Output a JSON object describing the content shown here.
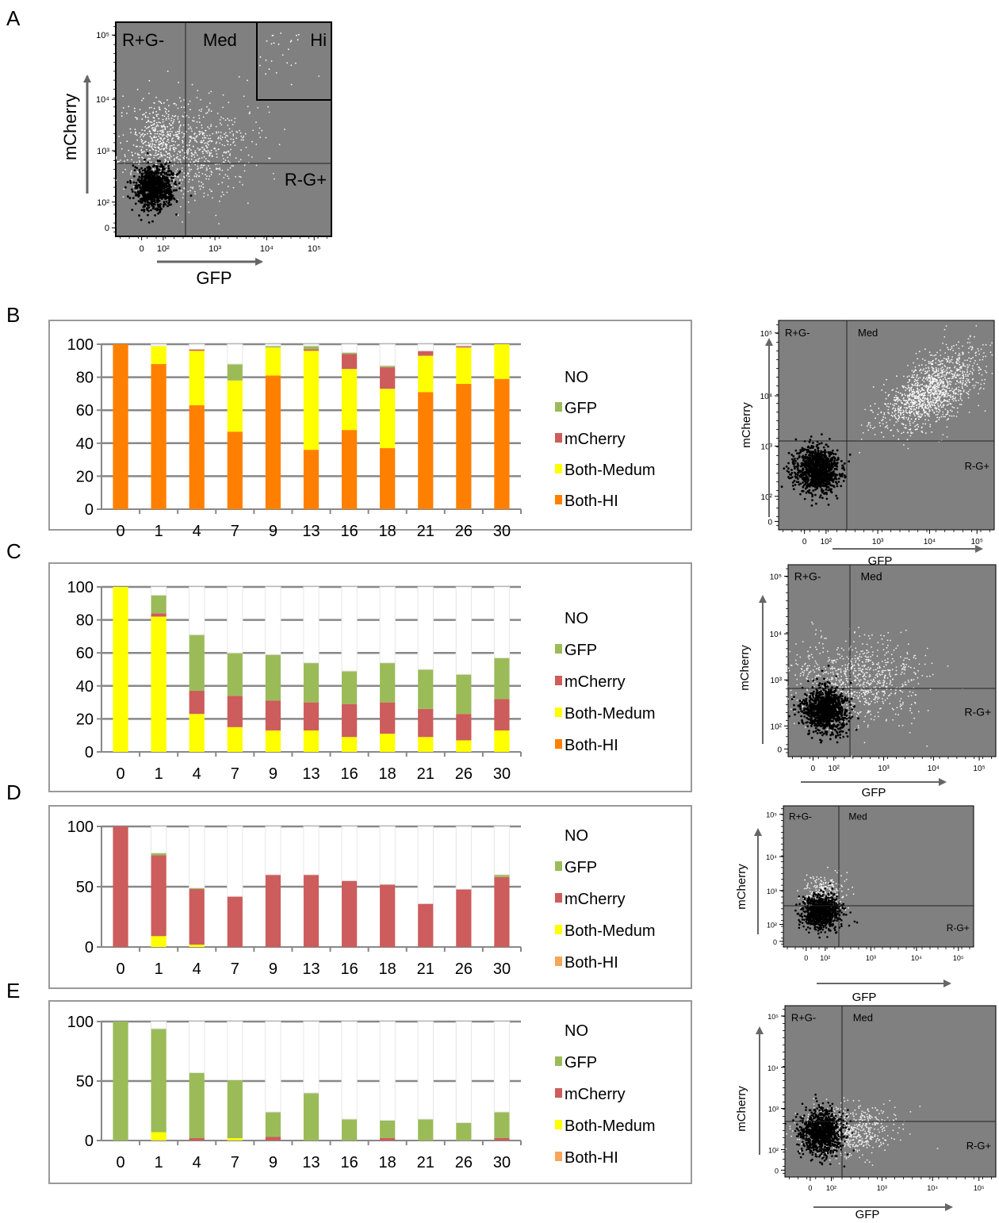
{
  "panels": [
    "A",
    "B",
    "C",
    "D",
    "E"
  ],
  "colors": {
    "NO": "#ffffff",
    "GFP": "#9bbb59",
    "mCherry": "#cd5c5c",
    "Both-Medum": "#ffff00",
    "Both-HI": "#ff8000",
    "Both-HI-light": "#f7a55a",
    "plot_bg": "#808080",
    "gridline": "#999999",
    "frame": "#999999",
    "arrow": "#666666"
  },
  "flow_plots": [
    {
      "panel": "A",
      "ylabel": "mCherry",
      "xlabel": "GFP",
      "y_ticks": [
        "10⁵",
        "10⁴",
        "10³",
        "10²",
        "0"
      ],
      "x_ticks": [
        "0",
        "10²",
        "10³",
        "10⁴",
        "10⁵"
      ],
      "quadrants": [
        "R+G-",
        "Med",
        "Hi",
        "R-G+"
      ],
      "population": "A"
    },
    {
      "panel": "B",
      "ylabel": "mCherry",
      "xlabel": "GFP",
      "y_ticks": [
        "10⁵",
        "10⁴",
        "10³",
        "10²",
        "0"
      ],
      "x_ticks": [
        "0",
        "10²",
        "10³",
        "10⁴",
        "10⁵"
      ],
      "quadrants": [
        "R+G-",
        "Med",
        "R-G+"
      ],
      "population": "B"
    },
    {
      "panel": "C",
      "ylabel": "mCherry",
      "xlabel": "GFP",
      "y_ticks": [
        "10⁵",
        "10⁴",
        "10³",
        "10²",
        "0"
      ],
      "x_ticks": [
        "0",
        "10²",
        "10³",
        "10⁴",
        "10⁵"
      ],
      "quadrants": [
        "R+G-",
        "Med",
        "R-G+"
      ],
      "population": "C"
    },
    {
      "panel": "D",
      "ylabel": "mCherry",
      "xlabel": "GFP",
      "y_ticks": [
        "10⁵",
        "10⁴",
        "10³",
        "10²",
        "0"
      ],
      "x_ticks": [
        "0",
        "10²",
        "10³",
        "10⁴",
        "10⁵"
      ],
      "quadrants": [
        "R+G-",
        "Med",
        "R-G+"
      ],
      "population": "D"
    },
    {
      "panel": "E",
      "ylabel": "mCherry",
      "xlabel": "GFP",
      "y_ticks": [
        "10⁵",
        "10⁴",
        "10³",
        "10²",
        "0"
      ],
      "x_ticks": [
        "0",
        "10²",
        "10³",
        "10⁴",
        "10⁵"
      ],
      "quadrants": [
        "R+G-",
        "Med",
        "R-G+"
      ],
      "population": "E"
    }
  ],
  "chart_data": [
    {
      "panel": "B",
      "type": "bar",
      "stacked": true,
      "categories": [
        "0",
        "1",
        "4",
        "7",
        "9",
        "13",
        "16",
        "18",
        "21",
        "26",
        "30"
      ],
      "ylim": [
        0,
        100
      ],
      "yticks": [
        0,
        20,
        40,
        60,
        80,
        100
      ],
      "legend": [
        "NO",
        "GFP",
        "mCherry",
        "Both-Medum",
        "Both-HI"
      ],
      "legend_position": "right",
      "grid": true,
      "series": [
        {
          "name": "Both-HI",
          "color": "#ff8000",
          "values": [
            100,
            88,
            63,
            47,
            81,
            36,
            48,
            37,
            71,
            76,
            79
          ]
        },
        {
          "name": "Both-Medum",
          "color": "#ffff00",
          "values": [
            0,
            11,
            33,
            31,
            17,
            60,
            37,
            36,
            22,
            22,
            21
          ]
        },
        {
          "name": "mCherry",
          "color": "#cd5c5c",
          "values": [
            0,
            0,
            1,
            0,
            0,
            1,
            9,
            13,
            3,
            1,
            0
          ]
        },
        {
          "name": "GFP",
          "color": "#9bbb59",
          "values": [
            0,
            0,
            0,
            10,
            1,
            2,
            1,
            1,
            0,
            0,
            0
          ]
        },
        {
          "name": "NO",
          "color": "#ffffff",
          "values": [
            0,
            1,
            3,
            12,
            1,
            1,
            5,
            13,
            4,
            1,
            0
          ]
        }
      ]
    },
    {
      "panel": "C",
      "type": "bar",
      "stacked": true,
      "categories": [
        "0",
        "1",
        "4",
        "7",
        "9",
        "13",
        "16",
        "18",
        "21",
        "26",
        "30"
      ],
      "ylim": [
        0,
        100
      ],
      "yticks": [
        0,
        20,
        40,
        60,
        80,
        100
      ],
      "legend": [
        "NO",
        "GFP",
        "mCherry",
        "Both-Medum",
        "Both-HI"
      ],
      "legend_position": "right",
      "grid": true,
      "series": [
        {
          "name": "Both-HI",
          "color": "#ff8000",
          "values": [
            0,
            0,
            0,
            0,
            0,
            0,
            0,
            0,
            0,
            0,
            0
          ]
        },
        {
          "name": "Both-Medum",
          "color": "#ffff00",
          "values": [
            100,
            82,
            23,
            15,
            13,
            13,
            9,
            11,
            9,
            7,
            13
          ]
        },
        {
          "name": "mCherry",
          "color": "#cd5c5c",
          "values": [
            0,
            2,
            14,
            19,
            18,
            17,
            20,
            19,
            17,
            16,
            19
          ]
        },
        {
          "name": "GFP",
          "color": "#9bbb59",
          "values": [
            0,
            11,
            34,
            26,
            28,
            24,
            20,
            24,
            24,
            24,
            25
          ]
        },
        {
          "name": "NO",
          "color": "#ffffff",
          "values": [
            0,
            5,
            29,
            40,
            41,
            46,
            51,
            46,
            50,
            53,
            43
          ]
        }
      ]
    },
    {
      "panel": "D",
      "type": "bar",
      "stacked": true,
      "categories": [
        "0",
        "1",
        "4",
        "7",
        "9",
        "13",
        "16",
        "18",
        "21",
        "26",
        "30"
      ],
      "ylim": [
        0,
        100
      ],
      "yticks": [
        0,
        50,
        100
      ],
      "legend": [
        "NO",
        "GFP",
        "mCherry",
        "Both-Medum",
        "Both-HI"
      ],
      "legend_position": "right",
      "grid": true,
      "series": [
        {
          "name": "Both-HI",
          "color": "#f7a55a",
          "values": [
            0,
            0,
            0,
            0,
            0,
            0,
            0,
            0,
            0,
            0,
            0
          ]
        },
        {
          "name": "Both-Medum",
          "color": "#ffff00",
          "values": [
            0,
            9,
            2,
            0,
            0,
            0,
            0,
            0,
            0,
            0,
            0
          ]
        },
        {
          "name": "mCherry",
          "color": "#cd5c5c",
          "values": [
            100,
            67,
            46,
            42,
            60,
            60,
            55,
            52,
            36,
            48,
            58
          ]
        },
        {
          "name": "GFP",
          "color": "#9bbb59",
          "values": [
            0,
            2,
            1,
            0,
            0,
            0,
            0,
            0,
            0,
            0,
            2
          ]
        },
        {
          "name": "NO",
          "color": "#ffffff",
          "values": [
            0,
            22,
            51,
            58,
            40,
            40,
            45,
            48,
            64,
            52,
            40
          ]
        }
      ]
    },
    {
      "panel": "E",
      "type": "bar",
      "stacked": true,
      "categories": [
        "0",
        "1",
        "4",
        "7",
        "9",
        "13",
        "16",
        "18",
        "21",
        "26",
        "30"
      ],
      "ylim": [
        0,
        100
      ],
      "yticks": [
        0,
        50,
        100
      ],
      "legend": [
        "NO",
        "GFP",
        "mCherry",
        "Both-Medum",
        "Both-HI"
      ],
      "legend_position": "right",
      "grid": true,
      "series": [
        {
          "name": "Both-HI",
          "color": "#f7a55a",
          "values": [
            0,
            0,
            0,
            0,
            0,
            0,
            0,
            0,
            0,
            0,
            0
          ]
        },
        {
          "name": "Both-Medum",
          "color": "#ffff00",
          "values": [
            0,
            7,
            0,
            2,
            0,
            0,
            0,
            0,
            0,
            0,
            0
          ]
        },
        {
          "name": "mCherry",
          "color": "#cd5c5c",
          "values": [
            0,
            0,
            2,
            0,
            3,
            0,
            0,
            2,
            0,
            0,
            2
          ]
        },
        {
          "name": "GFP",
          "color": "#9bbb59",
          "values": [
            100,
            87,
            55,
            49,
            21,
            40,
            18,
            15,
            18,
            15,
            22
          ]
        },
        {
          "name": "NO",
          "color": "#ffffff",
          "values": [
            0,
            6,
            43,
            49,
            76,
            60,
            82,
            83,
            82,
            85,
            76
          ]
        }
      ]
    }
  ]
}
